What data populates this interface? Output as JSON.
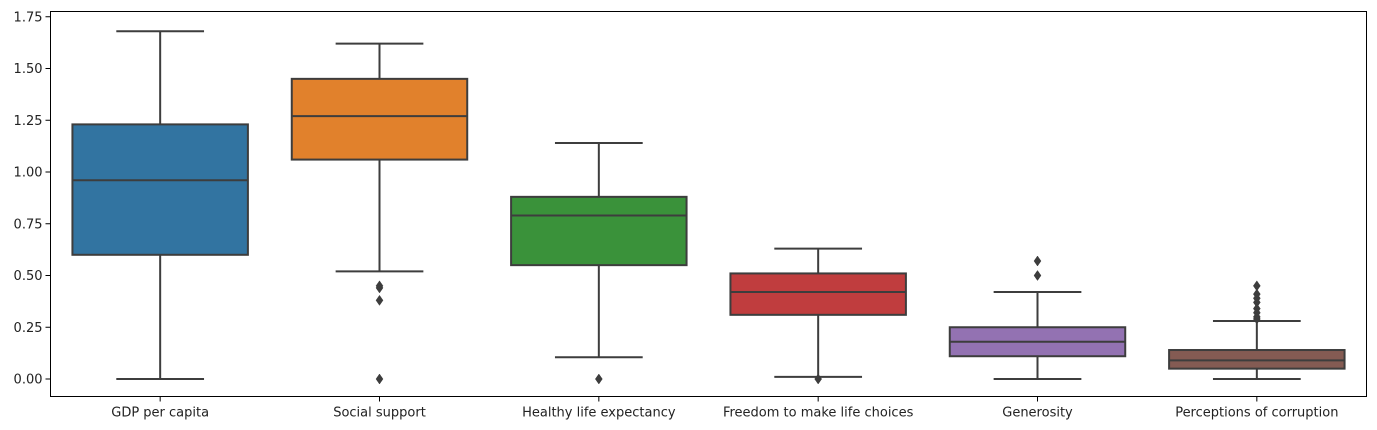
{
  "chart_data": {
    "type": "box",
    "title": "",
    "xlabel": "",
    "ylabel": "",
    "ylim": [
      -0.08,
      1.76
    ],
    "yticks": [
      0.0,
      0.25,
      0.5,
      0.75,
      1.0,
      1.25,
      1.5,
      1.75
    ],
    "ytick_labels": [
      "0.00",
      "0.25",
      "0.50",
      "0.75",
      "1.00",
      "1.25",
      "1.50",
      "1.75"
    ],
    "grid": false,
    "legend": "none",
    "categories": [
      "GDP per capita",
      "Social support",
      "Healthy life expectancy",
      "Freedom to make life choices",
      "Generosity",
      "Perceptions of corruption"
    ],
    "colors": [
      "#3274a1",
      "#e1812c",
      "#3a923a",
      "#c03d3e",
      "#9372b2",
      "#845b53"
    ],
    "boxes": [
      {
        "whisker_low": 0.0,
        "q1": 0.6,
        "median": 0.96,
        "q3": 1.23,
        "whisker_high": 1.68,
        "outliers": []
      },
      {
        "whisker_low": 0.52,
        "q1": 1.06,
        "median": 1.27,
        "q3": 1.45,
        "whisker_high": 1.62,
        "outliers": [
          0.45,
          0.44,
          0.38,
          0.0
        ]
      },
      {
        "whisker_low": 0.105,
        "q1": 0.55,
        "median": 0.79,
        "q3": 0.88,
        "whisker_high": 1.14,
        "outliers": [
          0.0
        ]
      },
      {
        "whisker_low": 0.01,
        "q1": 0.31,
        "median": 0.42,
        "q3": 0.51,
        "whisker_high": 0.63,
        "outliers": [
          0.0
        ]
      },
      {
        "whisker_low": 0.0,
        "q1": 0.11,
        "median": 0.18,
        "q3": 0.25,
        "whisker_high": 0.42,
        "outliers": [
          0.57,
          0.5
        ]
      },
      {
        "whisker_low": 0.0,
        "q1": 0.05,
        "median": 0.09,
        "q3": 0.14,
        "whisker_high": 0.28,
        "outliers": [
          0.45,
          0.41,
          0.39,
          0.37,
          0.34,
          0.32,
          0.3,
          0.29
        ]
      }
    ]
  }
}
